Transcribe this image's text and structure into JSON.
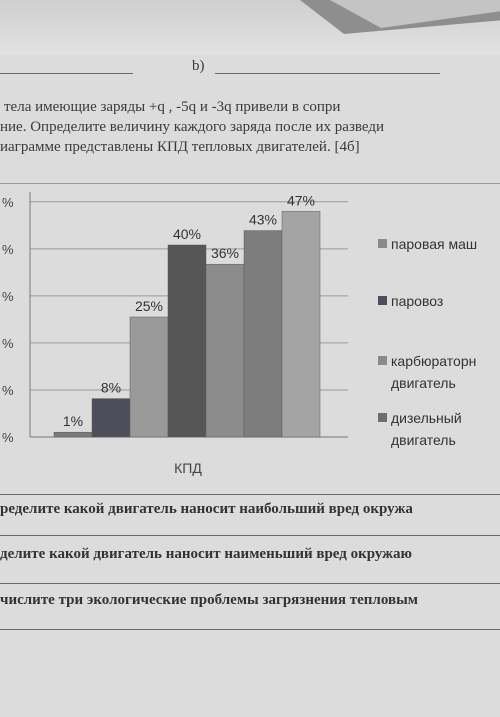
{
  "header": {
    "b_label": "b)"
  },
  "task_text": {
    "line1": "тела  имеющие  заряды   +q ,   -5q и -3q   привели  в  сопри",
    "line2": "ние. Определите величину каждого заряда после их  разведи",
    "line3": "иаграмме представлены КПД тепловых двигателей. [4б]"
  },
  "chart_data": {
    "type": "bar",
    "xlabel": "КПД",
    "categories": [
      "КПД"
    ],
    "ylim": [
      0,
      50
    ],
    "y_tick_suffix": [
      "%",
      "%",
      "%",
      "%",
      "%",
      "%"
    ],
    "series": [
      {
        "name": "",
        "value": 1,
        "label": "1%",
        "color": "#7a7a7a"
      },
      {
        "name": "",
        "value": 8,
        "label": "8%",
        "color": "#4e4e5a"
      },
      {
        "name": "",
        "value": 25,
        "label": "25%",
        "color": "#9a9a9a"
      },
      {
        "name": "",
        "value": 40,
        "label": "40%",
        "color": "#565656"
      },
      {
        "name": "",
        "value": 36,
        "label": "36%",
        "color": "#8c8c8c"
      },
      {
        "name": "",
        "value": 43,
        "label": "43%",
        "color": "#7d7d7d"
      },
      {
        "name": "",
        "value": 47,
        "label": "47%",
        "color": "#a4a4a4"
      }
    ],
    "legend": [
      {
        "label": "паровая маш",
        "color": "#8a8a8a"
      },
      {
        "label": "паровоз",
        "color": "#4e4e5a"
      },
      {
        "label": "карбюраторн двигатель",
        "label_line1": "карбюраторн",
        "label_line2": "двигатель",
        "color": "#8a8a8a"
      },
      {
        "label": "дизельный двигатель",
        "label_line1": "дизельный",
        "label_line2": "двигатель",
        "color": "#6e6e6e"
      }
    ],
    "grid": true,
    "legend_position": "right"
  },
  "questions": [
    "ределите какой двигатель наносит наибольший вред окружа",
    "делите какой двигатель наносит наименьший вред окружаю",
    "числите три экологические проблемы загрязнения тепловым"
  ]
}
